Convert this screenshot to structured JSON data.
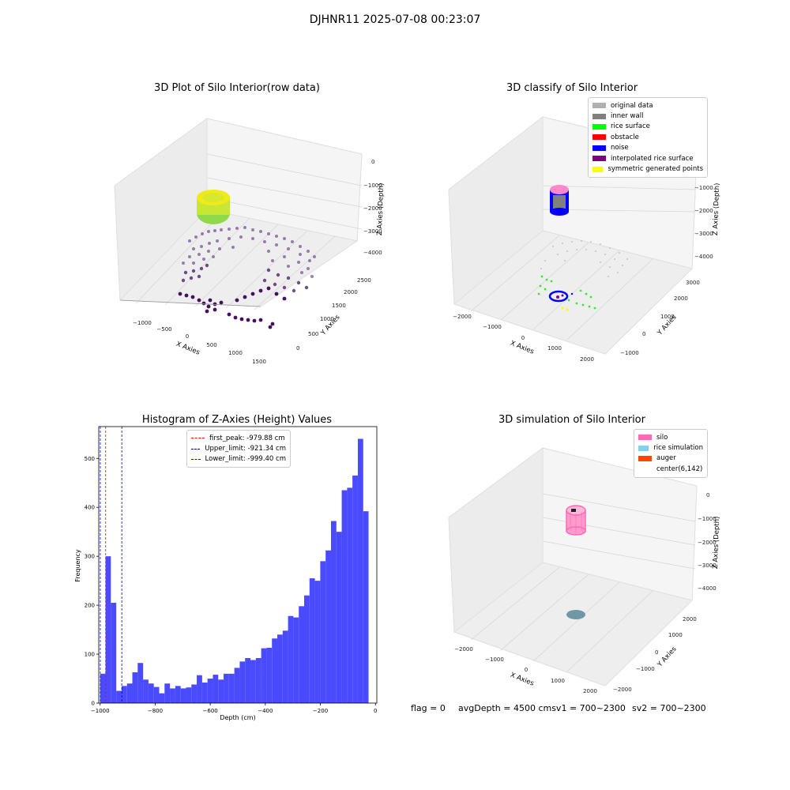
{
  "suptitle": "DJHNR11 2025-07-08 00:23:07",
  "chart_data": [
    {
      "type": "scatter",
      "title": "3D Plot of Silo Interior(row data)",
      "xlabel": "X Axies",
      "ylabel": "Y Axies",
      "zlabel": "Z Axies (Depth)",
      "xticks": [
        "−1000",
        "−500",
        "0",
        "500",
        "1000",
        "1500"
      ],
      "yticks": [
        "0",
        "500",
        "1000",
        "1500",
        "2000",
        "2500"
      ],
      "zticks": [
        "0",
        "−1000",
        "−2000",
        "−3000",
        "−4000"
      ],
      "grid": true
    },
    {
      "type": "scatter",
      "title": "3D classify of Silo Interior",
      "xlabel": "X Axies",
      "ylabel": "Y Axies",
      "zlabel": "Z Axies (Depth)",
      "xticks": [
        "−2000",
        "−1000",
        "0",
        "1000",
        "2000"
      ],
      "yticks": [
        "−1000",
        "0",
        "1000",
        "2000",
        "3000"
      ],
      "zticks": [
        "−1000",
        "−2000",
        "−3000",
        "−4000"
      ],
      "legend": [
        {
          "label": "original data",
          "color": "#b0b0b0"
        },
        {
          "label": "inner wall",
          "color": "#808080"
        },
        {
          "label": "rice surface",
          "color": "#00ff00"
        },
        {
          "label": "obstacle",
          "color": "#ff0000"
        },
        {
          "label": "noise",
          "color": "#0000ff"
        },
        {
          "label": "interpolated rice surface",
          "color": "#800080"
        },
        {
          "label": "symmetric generated points",
          "color": "#ffff00"
        }
      ],
      "legend_position": "top-right",
      "grid": true
    },
    {
      "type": "bar",
      "title": "Histogram of Z-Axies (Height) Values",
      "xlabel": "Depth (cm)",
      "ylabel": "Frequency",
      "xlim": [
        -1005,
        5
      ],
      "ylim": [
        0,
        565
      ],
      "xticks": [
        -1000,
        -800,
        -600,
        -400,
        -200,
        0
      ],
      "xtick_labels": [
        "−1000",
        "−800",
        "−600",
        "−400",
        "−200",
        "0"
      ],
      "yticks": [
        0,
        100,
        200,
        300,
        400,
        500
      ],
      "bin_edges_start": -1000,
      "bin_width": 19.5,
      "values": [
        60,
        300,
        205,
        25,
        35,
        40,
        63,
        82,
        48,
        40,
        33,
        20,
        40,
        30,
        35,
        30,
        32,
        38,
        57,
        42,
        50,
        58,
        48,
        60,
        60,
        72,
        85,
        92,
        88,
        92,
        112,
        113,
        132,
        140,
        148,
        178,
        175,
        198,
        220,
        255,
        250,
        290,
        312,
        372,
        350,
        435,
        440,
        465,
        540,
        392
      ],
      "bar_color": "#4a4aff",
      "vlines": [
        {
          "label": "first_peak: -979.88 cm",
          "x": -979.88,
          "color": "#ff0000"
        },
        {
          "label": "Upper_limit: -921.34 cm",
          "x": -921.34,
          "color": "#00008b"
        },
        {
          "label": "Lower_limit: -999.40 cm",
          "x": -999.4,
          "color": "#0000ff"
        }
      ],
      "legend_position": "top-center",
      "grid": false
    },
    {
      "type": "scatter",
      "title": "3D simulation of Silo Interior",
      "xlabel": "X Axies",
      "ylabel": "Y Axies",
      "zlabel": "Z Axies (Depth)",
      "xticks": [
        "−2000",
        "−1000",
        "0",
        "1000",
        "2000"
      ],
      "yticks": [
        "−2000",
        "−1000",
        "0",
        "1000",
        "2000"
      ],
      "zticks": [
        "0",
        "−1000",
        "−2000",
        "−3000",
        "−4000"
      ],
      "legend": [
        {
          "label": "silo",
          "color": "#ff69b4"
        },
        {
          "label": "rice simulation",
          "color": "#87ceeb"
        },
        {
          "label": "auger",
          "color": "#ff4500"
        },
        {
          "label": "center(6,142)",
          "color": "#ffffff"
        }
      ],
      "legend_position": "top-right",
      "grid": true
    }
  ],
  "footer": {
    "flag": "flag = 0",
    "avg": "avgDepth = 4500 cmsv1 = 700~2300",
    "sv2": "sv2 = 700~2300"
  }
}
